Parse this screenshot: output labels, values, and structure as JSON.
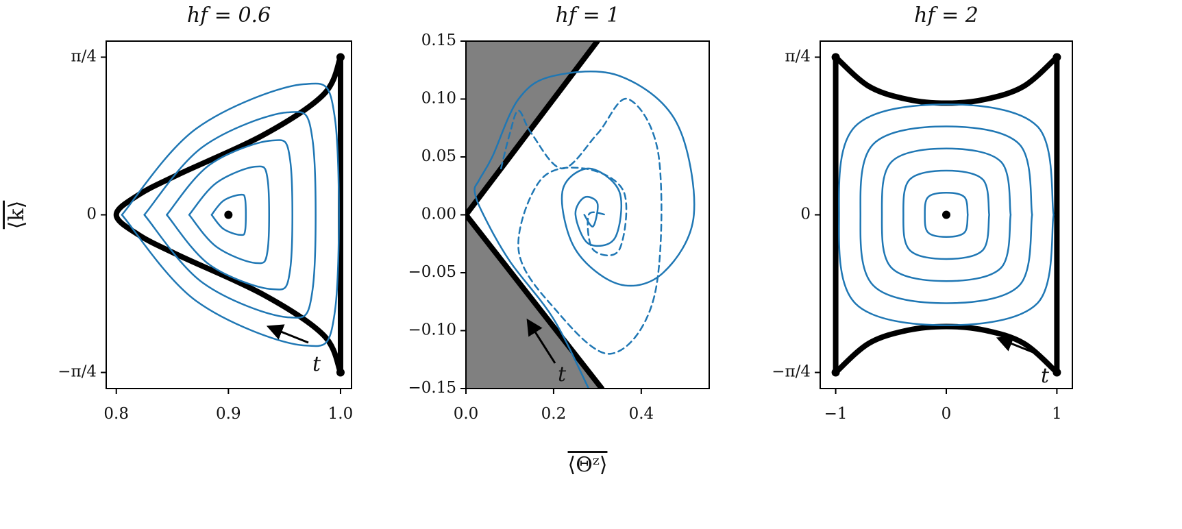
{
  "chart_data": [
    {
      "type": "line",
      "title": "hf = 0.6",
      "ylabel": "⟨k⟩",
      "annotation": "t",
      "xlim": [
        0.791,
        1.0098
      ],
      "ylim": [
        -0.865,
        0.865
      ],
      "xticks": [
        0.8,
        0.9,
        {
          "value": 1,
          "label": "1.0"
        }
      ],
      "yticks": [
        {
          "value": -0.785,
          "label": "−π/4"
        },
        0,
        {
          "value": 0.785,
          "label": "π/4"
        }
      ],
      "series": [
        {
          "color": "#000000",
          "width": 8,
          "smooth": true,
          "x": [
            1,
            0.985,
            0.932,
            0.855,
            0.82,
            0.8,
            0.82,
            0.855,
            0.932,
            0.985,
            1
          ],
          "values": [
            -0.785,
            -0.6,
            -0.4,
            -0.2,
            -0.1,
            0,
            0.1,
            0.2,
            0.4,
            0.6,
            0.785
          ]
        },
        {
          "color": "#000000",
          "width": 8,
          "smooth": false,
          "x": [
            1,
            1
          ],
          "values": [
            0.785,
            -0.785
          ]
        },
        {
          "color": "#1f77b4",
          "width": 2.5,
          "smooth": true,
          "x": [
            0.805,
            0.8715,
            0.9665,
            0.995,
            0.995,
            0.9665,
            0.8715,
            0.805,
            null,
            0.825,
            0.8775,
            0.9525,
            0.975,
            0.975,
            0.9525,
            0.8775,
            0.825,
            null,
            0.845,
            0.8835,
            0.9385,
            0.955,
            0.955,
            0.9385,
            0.8835,
            0.845,
            null,
            0.865,
            0.8895,
            0.9245,
            0.935,
            0.935,
            0.9245,
            0.8895,
            0.865,
            null,
            0.885,
            0.8955,
            0.9105,
            0.915,
            0.915,
            0.9105,
            0.8955,
            0.885
          ],
          "values": [
            0,
            0.43,
            0.65,
            0.48,
            -0.48,
            -0.65,
            -0.43,
            0,
            null,
            0,
            0.34,
            0.51,
            0.375,
            -0.375,
            -0.51,
            -0.34,
            0,
            null,
            0,
            0.25,
            0.37,
            0.275,
            -0.275,
            -0.37,
            -0.25,
            0,
            null,
            0,
            0.16,
            0.24,
            0.175,
            -0.175,
            -0.24,
            -0.16,
            0,
            null,
            0,
            0.07,
            0.1,
            0.075,
            -0.075,
            -0.1,
            -0.07,
            0
          ]
        },
        {
          "color": "#000000",
          "marker": true,
          "x": [
            0.9,
            1,
            1
          ],
          "values": [
            0,
            0.785,
            -0.785
          ]
        }
      ]
    },
    {
      "type": "line",
      "title": "hf = 1",
      "xlabel": "⟨Θᶻ⟩",
      "annotation": "t",
      "xlim": [
        0,
        0.555
      ],
      "ylim": [
        -0.15,
        0.15
      ],
      "xticks": [
        {
          "value": 0,
          "label": "0.0"
        },
        0.2,
        0.4
      ],
      "yticks": [
        {
          "value": -0.15,
          "label": "−0.15"
        },
        {
          "value": -0.1,
          "label": "−0.10"
        },
        {
          "value": -0.05,
          "label": "−0.05"
        },
        {
          "value": 0,
          "label": "0.00"
        },
        0.05,
        {
          "value": 0.1,
          "label": "0.10"
        },
        0.15
      ],
      "series": [
        {
          "color": "none",
          "fill": "#808080",
          "x": [
            0,
            0.3,
            0,
            0.31,
            0
          ],
          "values": [
            0.15,
            0.15,
            0,
            -0.15,
            -0.15
          ]
        },
        {
          "color": "#000000",
          "width": 8,
          "smooth": false,
          "x": [
            0.3,
            0,
            0.31
          ],
          "values": [
            0.15,
            0,
            -0.15
          ]
        },
        {
          "color": "#1f77b4",
          "width": 2.5,
          "smooth": true,
          "x": [
            0.28,
            0.2,
            0.1,
            0.04,
            0.02,
            0.03,
            0.06,
            0.12,
            0.2,
            0.35,
            0.48,
            0.52,
            0.45,
            0.35,
            0.25,
            0.22,
            0.28,
            0.35,
            0.34,
            0.28,
            0.25,
            0.27,
            0.3,
            0.29,
            0.27
          ],
          "values": [
            -0.15,
            -0.09,
            -0.04,
            0,
            0.02,
            0.03,
            0.05,
            0.1,
            0.12,
            0.12,
            0.08,
            0,
            -0.05,
            -0.06,
            -0.03,
            0.02,
            0.04,
            0.02,
            -0.02,
            -0.025,
            0,
            0.015,
            0.01,
            -0.01,
            0
          ]
        },
        {
          "color": "#1f77b4",
          "width": 2.5,
          "smooth": true,
          "dash": true,
          "x": [
            0.08,
            0.1,
            0.12,
            0.15,
            0.22,
            0.3,
            0.37,
            0.44,
            0.43,
            0.33,
            0.2,
            0.12,
            0.17,
            0.27,
            0.36,
            0.35,
            0.29,
            0.28,
            0.32
          ],
          "values": [
            0.04,
            0.07,
            0.09,
            0.07,
            0.04,
            0.07,
            0.1,
            0.05,
            -0.07,
            -0.12,
            -0.08,
            -0.03,
            0.03,
            0.04,
            0.02,
            -0.03,
            -0.03,
            0,
            0
          ]
        }
      ]
    },
    {
      "type": "line",
      "title": "hf = 2",
      "annotation": "t",
      "xlim": [
        -1.14,
        1.14
      ],
      "ylim": [
        -0.865,
        0.865
      ],
      "xticks": [
        {
          "value": -1,
          "label": "−1"
        },
        0,
        1
      ],
      "yticks": [
        {
          "value": -0.785,
          "label": "−π/4"
        },
        0,
        {
          "value": 0.785,
          "label": "π/4"
        }
      ],
      "series": [
        {
          "color": "#000000",
          "width": 8,
          "smooth": true,
          "x": [
            -1,
            -0.7,
            -0.35,
            0,
            0.35,
            0.7,
            1
          ],
          "values": [
            0.785,
            0.64,
            0.575,
            0.556,
            0.575,
            0.64,
            0.785
          ]
        },
        {
          "color": "#000000",
          "width": 8,
          "smooth": true,
          "x": [
            -1,
            -0.7,
            -0.35,
            0,
            0.35,
            0.7,
            1
          ],
          "values": [
            -0.785,
            -0.64,
            -0.575,
            -0.556,
            -0.575,
            -0.64,
            -0.785
          ]
        },
        {
          "color": "#000000",
          "width": 8,
          "smooth": false,
          "x": [
            -1,
            -1,
            null,
            1,
            1
          ],
          "values": [
            0.785,
            -0.785,
            null,
            0.785,
            -0.785
          ]
        },
        {
          "color": "#1f77b4",
          "width": 2.5,
          "smooth": true,
          "x": [
            0.97,
            0.8245,
            0,
            -0.8245,
            -0.97,
            -0.8245,
            0,
            0.8245,
            0.97,
            null,
            0.776,
            0.66,
            0,
            -0.66,
            -0.776,
            -0.66,
            0,
            0.66,
            0.776,
            null,
            0.582,
            0.495,
            0,
            -0.495,
            -0.582,
            -0.495,
            0,
            0.495,
            0.582,
            null,
            0.388,
            0.33,
            0,
            -0.33,
            -0.388,
            -0.33,
            0,
            0.33,
            0.388,
            null,
            0.194,
            0.165,
            0,
            -0.165,
            -0.194,
            -0.165,
            0,
            0.165,
            0.194
          ],
          "values": [
            0,
            0.44,
            0.55,
            0.44,
            0,
            -0.44,
            -0.55,
            -0.44,
            0,
            null,
            0,
            0.352,
            0.44,
            0.352,
            0,
            -0.352,
            -0.44,
            -0.352,
            0,
            null,
            0,
            0.264,
            0.33,
            0.264,
            0,
            -0.264,
            -0.33,
            -0.264,
            0,
            null,
            0,
            0.176,
            0.22,
            0.176,
            0,
            -0.176,
            -0.22,
            -0.176,
            0,
            null,
            0,
            0.088,
            0.11,
            0.088,
            0,
            -0.088,
            -0.11,
            -0.088,
            0
          ]
        },
        {
          "color": "#000000",
          "marker": true,
          "x": [
            0,
            -1,
            -1,
            1,
            1
          ],
          "values": [
            0,
            0.785,
            -0.785,
            0.785,
            -0.785
          ]
        }
      ]
    }
  ]
}
